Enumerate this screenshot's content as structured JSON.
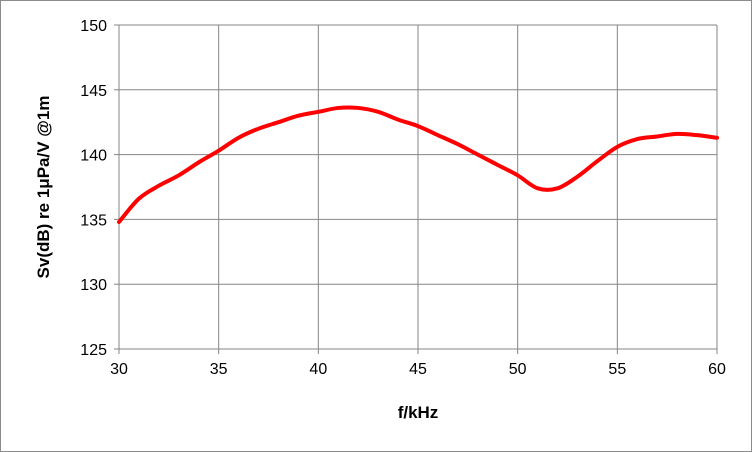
{
  "chart_data": {
    "type": "line",
    "title": "",
    "xlabel": "f/kHz",
    "ylabel": "Sv(dB) re 1μPa/V @1m",
    "xlim": [
      30,
      60
    ],
    "ylim": [
      125,
      150
    ],
    "x_ticks": [
      30,
      35,
      40,
      45,
      50,
      55,
      60
    ],
    "y_ticks": [
      125,
      130,
      135,
      140,
      145,
      150
    ],
    "grid": true,
    "legend": "none",
    "series": [
      {
        "color": "#ff0000",
        "x": [
          30,
          31,
          32,
          33,
          34,
          35,
          36,
          37,
          38,
          39,
          40,
          41,
          42,
          43,
          44,
          45,
          46,
          47,
          48,
          49,
          50,
          51,
          52,
          53,
          54,
          55,
          56,
          57,
          58,
          59,
          60
        ],
        "y": [
          134.8,
          136.6,
          137.6,
          138.4,
          139.4,
          140.3,
          141.3,
          142.0,
          142.5,
          143.0,
          143.3,
          143.6,
          143.6,
          143.3,
          142.7,
          142.2,
          141.5,
          140.8,
          140.0,
          139.2,
          138.4,
          137.4,
          137.4,
          138.3,
          139.5,
          140.6,
          141.2,
          141.4,
          141.6,
          141.5,
          141.3
        ]
      }
    ]
  }
}
